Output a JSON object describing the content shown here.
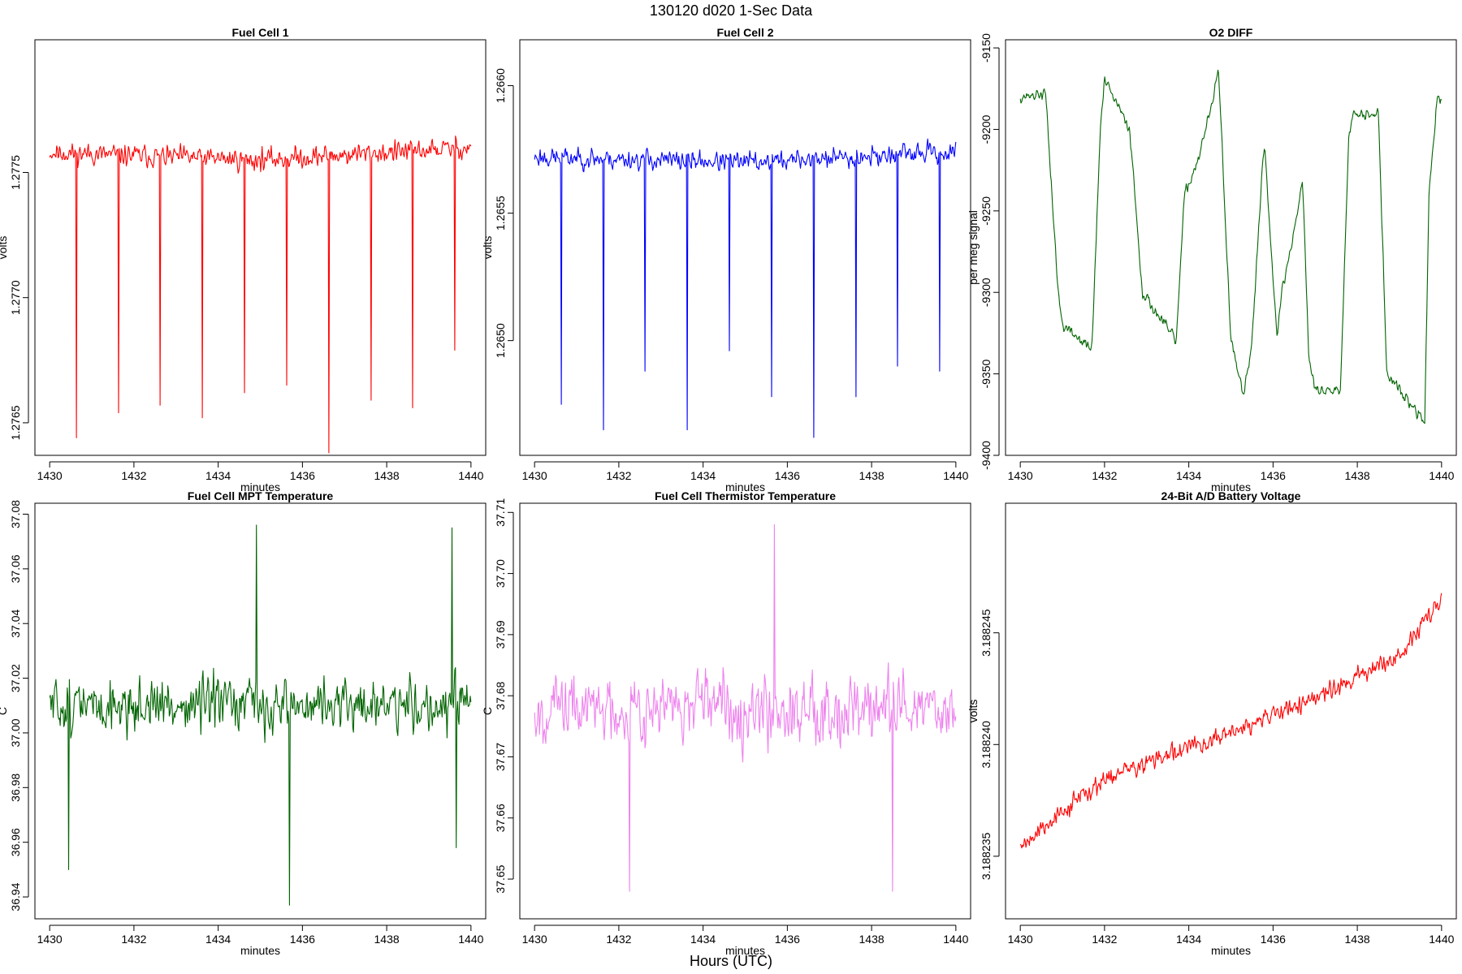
{
  "figure": {
    "title": "130120   d020   1-Sec Data",
    "outer_xlabel": "Hours (UTC)"
  },
  "chart_data": [
    {
      "type": "line",
      "title": "Fuel Cell 1",
      "xlabel": "minutes",
      "ylabel": "volts",
      "color": "#ff0000",
      "xlim": [
        1429.65,
        1440.35
      ],
      "ylim": [
        1.27637,
        1.27803
      ],
      "xticks": [
        1430,
        1432,
        1434,
        1436,
        1438,
        1440
      ],
      "xtick_labels": [
        "1430",
        "1432",
        "1434",
        "1436",
        "1438",
        "1440"
      ],
      "yticks": [
        1.2765,
        1.277,
        1.2775
      ],
      "ytick_labels": [
        "1.2765",
        "1.2770",
        "1.2775"
      ],
      "gen": {
        "n": 600,
        "seed": 11,
        "base": [
          [
            0,
            1.27758
          ],
          [
            0.5,
            1.27755
          ],
          [
            1,
            1.2776
          ]
        ],
        "noise": 8.5e-05,
        "spikes": [
          [
            0.063,
            1.27644
          ],
          [
            0.163,
            1.27654
          ],
          [
            0.262,
            1.27657
          ],
          [
            0.362,
            1.27652
          ],
          [
            0.462,
            1.27662
          ],
          [
            0.562,
            1.27665
          ],
          [
            0.663,
            1.27638
          ],
          [
            0.763,
            1.27659
          ],
          [
            0.862,
            1.27656
          ],
          [
            0.962,
            1.27679
          ]
        ],
        "min": 1.2773,
        "max": 1.27792
      }
    },
    {
      "type": "line",
      "title": "Fuel Cell 2",
      "xlabel": "minutes",
      "ylabel": "volts",
      "color": "#0000ff",
      "xlim": [
        1429.65,
        1440.35
      ],
      "ylim": [
        1.26455,
        1.26618
      ],
      "xticks": [
        1430,
        1432,
        1434,
        1436,
        1438,
        1440
      ],
      "xtick_labels": [
        "1430",
        "1432",
        "1434",
        "1436",
        "1438",
        "1440"
      ],
      "yticks": [
        1.265,
        1.2655,
        1.266
      ],
      "ytick_labels": [
        "1.2650",
        "1.2655",
        "1.2660"
      ],
      "gen": {
        "n": 600,
        "seed": 23,
        "base": [
          [
            0,
            1.26572
          ],
          [
            0.5,
            1.2657
          ],
          [
            1,
            1.26574
          ]
        ],
        "noise": 8e-05,
        "spikes": [
          [
            0.063,
            1.26475
          ],
          [
            0.163,
            1.26465
          ],
          [
            0.262,
            1.26488
          ],
          [
            0.362,
            1.26465
          ],
          [
            0.462,
            1.26496
          ],
          [
            0.562,
            1.26478
          ],
          [
            0.663,
            1.26462
          ],
          [
            0.763,
            1.26478
          ],
          [
            0.862,
            1.2649
          ],
          [
            0.962,
            1.26488
          ]
        ],
        "min": 1.26535,
        "max": 1.26612
      }
    },
    {
      "type": "line",
      "title": "O2 DIFF",
      "xlabel": "minutes",
      "ylabel": "per meg signal",
      "color": "#006400",
      "xlim": [
        1429.65,
        1440.35
      ],
      "ylim": [
        -9400,
        -9145
      ],
      "xticks": [
        1430,
        1432,
        1434,
        1436,
        1438,
        1440
      ],
      "xtick_labels": [
        "1430",
        "1432",
        "1434",
        "1436",
        "1438",
        "1440"
      ],
      "yticks": [
        -9400,
        -9350,
        -9300,
        -9250,
        -9200,
        -9150
      ],
      "ytick_labels": [
        "-9400",
        "-9350",
        "-9300",
        "-9250",
        "-9200",
        "-9150"
      ],
      "gen": {
        "n": 600,
        "seed": 37,
        "base": [
          [
            0,
            -9180
          ],
          [
            0.06,
            -9178
          ],
          [
            0.09,
            -9300
          ],
          [
            0.1,
            -9320
          ],
          [
            0.17,
            -9335
          ],
          [
            0.19,
            -9200
          ],
          [
            0.2,
            -9170
          ],
          [
            0.26,
            -9200
          ],
          [
            0.29,
            -9300
          ],
          [
            0.37,
            -9330
          ],
          [
            0.39,
            -9240
          ],
          [
            0.42,
            -9220
          ],
          [
            0.46,
            -9180
          ],
          [
            0.47,
            -9160
          ],
          [
            0.5,
            -9330
          ],
          [
            0.53,
            -9365
          ],
          [
            0.55,
            -9330
          ],
          [
            0.575,
            -9220
          ],
          [
            0.58,
            -9210
          ],
          [
            0.61,
            -9330
          ],
          [
            0.62,
            -9300
          ],
          [
            0.645,
            -9270
          ],
          [
            0.67,
            -9230
          ],
          [
            0.685,
            -9340
          ],
          [
            0.7,
            -9360
          ],
          [
            0.76,
            -9360
          ],
          [
            0.78,
            -9200
          ],
          [
            0.79,
            -9190
          ],
          [
            0.85,
            -9190
          ],
          [
            0.87,
            -9350
          ],
          [
            0.9,
            -9360
          ],
          [
            0.96,
            -9380
          ],
          [
            0.97,
            -9240
          ],
          [
            0.99,
            -9180
          ],
          [
            1,
            -9185
          ]
        ],
        "noise": 7,
        "spikes": [],
        "min": -9395,
        "max": -9150
      }
    },
    {
      "type": "line",
      "title": "Fuel Cell MPT Temperature",
      "xlabel": "minutes",
      "ylabel": "C",
      "color": "#006400",
      "xlim": [
        1429.65,
        1440.35
      ],
      "ylim": [
        36.932,
        37.084
      ],
      "xticks": [
        1430,
        1432,
        1434,
        1436,
        1438,
        1440
      ],
      "xtick_labels": [
        "1430",
        "1432",
        "1434",
        "1436",
        "1438",
        "1440"
      ],
      "yticks": [
        36.94,
        36.96,
        36.98,
        37.0,
        37.02,
        37.04,
        37.06,
        37.08
      ],
      "ytick_labels": [
        "36.94",
        "36.96",
        "36.98",
        "37.00",
        "37.02",
        "37.04",
        "37.06",
        "37.08"
      ],
      "gen": {
        "n": 600,
        "seed": 51,
        "base": [
          [
            0,
            37.01
          ],
          [
            1,
            37.01
          ]
        ],
        "noise": 0.02,
        "spikes": [
          [
            0.045,
            36.95
          ],
          [
            0.49,
            37.076
          ],
          [
            0.57,
            36.937
          ],
          [
            0.955,
            37.075
          ],
          [
            0.965,
            36.958
          ]
        ],
        "min": 36.955,
        "max": 37.06
      }
    },
    {
      "type": "line",
      "title": "Fuel Cell Thermistor Temperature",
      "xlabel": "minutes",
      "ylabel": "C",
      "color": "#ee82ee",
      "xlim": [
        1429.65,
        1440.35
      ],
      "ylim": [
        37.6435,
        37.7115
      ],
      "xticks": [
        1430,
        1432,
        1434,
        1436,
        1438,
        1440
      ],
      "xtick_labels": [
        "1430",
        "1432",
        "1434",
        "1436",
        "1438",
        "1440"
      ],
      "yticks": [
        37.65,
        37.66,
        37.67,
        37.68,
        37.69,
        37.7,
        37.71
      ],
      "ytick_labels": [
        "37.65",
        "37.66",
        "37.67",
        "37.68",
        "37.69",
        "37.70",
        "37.71"
      ],
      "gen": {
        "n": 600,
        "seed": 67,
        "base": [
          [
            0,
            37.678
          ],
          [
            1,
            37.678
          ]
        ],
        "noise": 0.011,
        "spikes": [
          [
            0.57,
            37.708
          ],
          [
            0.225,
            37.648
          ],
          [
            0.85,
            37.648
          ]
        ],
        "min": 37.652,
        "max": 37.706
      }
    },
    {
      "type": "line",
      "title": "24-Bit A/D Battery Voltage",
      "xlabel": "minutes",
      "ylabel": "volts",
      "color": "#ff0000",
      "xlim": [
        1429.65,
        1440.35
      ],
      "ylim": [
        3.1882322,
        3.1882508
      ],
      "xticks": [
        1430,
        1432,
        1434,
        1436,
        1438,
        1440
      ],
      "xtick_labels": [
        "1430",
        "1432",
        "1434",
        "1436",
        "1438",
        "1440"
      ],
      "yticks": [
        3.188235,
        3.18824,
        3.188245
      ],
      "ytick_labels": [
        "3.188235",
        "3.188240",
        "3.188245"
      ],
      "gen": {
        "n": 600,
        "seed": 79,
        "base": [
          [
            0,
            3.1882355
          ],
          [
            0.2,
            3.1882385
          ],
          [
            0.5,
            3.1882405
          ],
          [
            0.75,
            3.1882425
          ],
          [
            0.9,
            3.188244
          ],
          [
            1,
            3.1882465
          ]
        ],
        "noise": 9e-07,
        "spikes": [],
        "min": 3.1882335,
        "max": 3.18825
      }
    }
  ]
}
